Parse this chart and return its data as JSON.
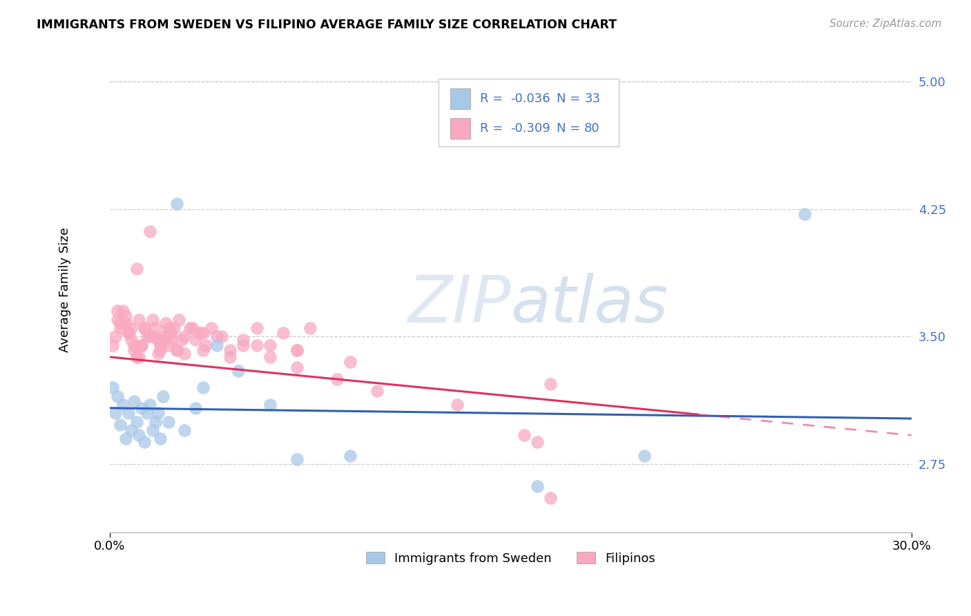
{
  "title": "IMMIGRANTS FROM SWEDEN VS FILIPINO AVERAGE FAMILY SIZE CORRELATION CHART",
  "source": "Source: ZipAtlas.com",
  "ylabel": "Average Family Size",
  "yticks": [
    2.75,
    3.5,
    4.25,
    5.0
  ],
  "xlim": [
    0.0,
    0.3
  ],
  "ylim": [
    2.35,
    5.2
  ],
  "watermark": "ZIPatlas",
  "sweden_r": "-0.036",
  "sweden_n": "33",
  "filipino_r": "-0.309",
  "filipino_n": "80",
  "sweden_scatter_color": "#a8c8e8",
  "filipino_scatter_color": "#f8a8c0",
  "sweden_line_color": "#3060b0",
  "filipino_line_color": "#e03060",
  "legend_text_color": "#4472c4",
  "legend_sweden_label": "Immigrants from Sweden",
  "legend_filipino_label": "Filipinos",
  "grid_color": "#cccccc",
  "right_axis_color": "#4472c4",
  "sweden_x": [
    0.001,
    0.002,
    0.003,
    0.004,
    0.005,
    0.006,
    0.007,
    0.008,
    0.009,
    0.01,
    0.011,
    0.012,
    0.013,
    0.014,
    0.015,
    0.016,
    0.017,
    0.018,
    0.019,
    0.02,
    0.022,
    0.025,
    0.028,
    0.032,
    0.035,
    0.04,
    0.048,
    0.06,
    0.07,
    0.09,
    0.16,
    0.2,
    0.26
  ],
  "sweden_y": [
    3.2,
    3.05,
    3.15,
    2.98,
    3.1,
    2.9,
    3.05,
    2.95,
    3.12,
    3.0,
    2.92,
    3.08,
    2.88,
    3.05,
    3.1,
    2.95,
    3.0,
    3.05,
    2.9,
    3.15,
    3.0,
    4.28,
    2.95,
    3.08,
    3.2,
    3.45,
    3.3,
    3.1,
    2.78,
    2.8,
    2.62,
    2.8,
    4.22
  ],
  "filipino_x": [
    0.001,
    0.002,
    0.003,
    0.004,
    0.005,
    0.006,
    0.007,
    0.008,
    0.009,
    0.01,
    0.011,
    0.012,
    0.013,
    0.014,
    0.015,
    0.016,
    0.017,
    0.018,
    0.019,
    0.02,
    0.021,
    0.022,
    0.023,
    0.024,
    0.025,
    0.026,
    0.028,
    0.03,
    0.032,
    0.034,
    0.036,
    0.038,
    0.04,
    0.045,
    0.05,
    0.055,
    0.06,
    0.065,
    0.07,
    0.075,
    0.01,
    0.012,
    0.015,
    0.018,
    0.02,
    0.022,
    0.025,
    0.008,
    0.006,
    0.004,
    0.003,
    0.007,
    0.009,
    0.011,
    0.013,
    0.016,
    0.019,
    0.023,
    0.027,
    0.031,
    0.035,
    0.042,
    0.05,
    0.06,
    0.07,
    0.085,
    0.1,
    0.13,
    0.155,
    0.018,
    0.022,
    0.028,
    0.035,
    0.045,
    0.055,
    0.07,
    0.09,
    0.16,
    0.165,
    0.165
  ],
  "filipino_y": [
    3.45,
    3.5,
    3.6,
    3.55,
    3.65,
    3.58,
    3.52,
    3.48,
    3.42,
    3.9,
    3.38,
    3.45,
    3.55,
    3.5,
    4.12,
    3.6,
    3.55,
    3.48,
    3.42,
    3.5,
    3.58,
    3.52,
    3.48,
    3.55,
    3.42,
    3.6,
    3.5,
    3.55,
    3.48,
    3.52,
    3.45,
    3.55,
    3.5,
    3.42,
    3.48,
    3.55,
    3.45,
    3.52,
    3.42,
    3.55,
    3.38,
    3.45,
    3.5,
    3.4,
    3.48,
    3.55,
    3.42,
    3.55,
    3.62,
    3.58,
    3.65,
    3.52,
    3.45,
    3.6,
    3.55,
    3.5,
    3.45,
    3.52,
    3.48,
    3.55,
    3.42,
    3.5,
    3.45,
    3.38,
    3.32,
    3.25,
    3.18,
    3.1,
    2.92,
    3.48,
    3.45,
    3.4,
    3.52,
    3.38,
    3.45,
    3.42,
    3.35,
    2.88,
    3.22,
    2.55
  ]
}
